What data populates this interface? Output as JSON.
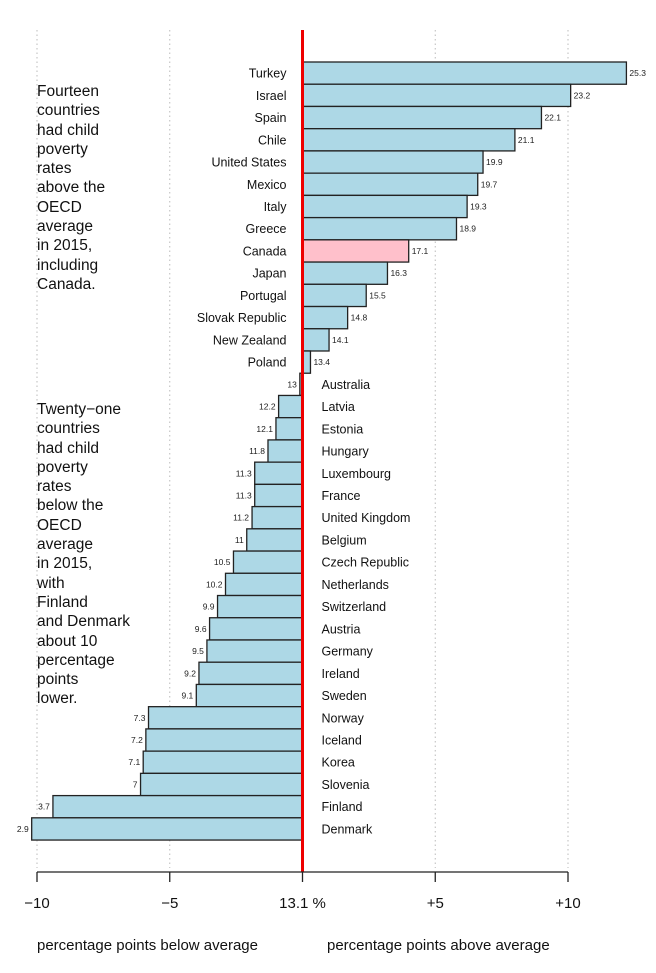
{
  "chart_data": {
    "type": "bar",
    "orientation": "horizontal",
    "title": "",
    "baseline_label": "13.1 %",
    "baseline_value": 13.1,
    "xlabel_left": "percentage points below average",
    "xlabel_right": "percentage points above average",
    "xlim": [
      -10,
      10
    ],
    "xticks": [
      -10,
      -5,
      0,
      5,
      10
    ],
    "xtick_labels": [
      "−10",
      "−5",
      "13.1 %",
      "+5",
      "+10"
    ],
    "grid": "vertical dotted",
    "highlight_color": "#ffc0cb",
    "bar_color": "#add8e6",
    "baseline_color": "#ee0000",
    "categories": [
      "Turkey",
      "Israel",
      "Spain",
      "Chile",
      "United States",
      "Mexico",
      "Italy",
      "Greece",
      "Canada",
      "Japan",
      "Portugal",
      "Slovak Republic",
      "New Zealand",
      "Poland",
      "Australia",
      "Latvia",
      "Estonia",
      "Hungary",
      "Luxembourg",
      "France",
      "United Kingdom",
      "Belgium",
      "Czech Republic",
      "Netherlands",
      "Switzerland",
      "Austria",
      "Germany",
      "Ireland",
      "Sweden",
      "Norway",
      "Iceland",
      "Korea",
      "Slovenia",
      "Finland",
      "Denmark"
    ],
    "values": [
      25.3,
      23.2,
      22.1,
      21.1,
      19.9,
      19.7,
      19.3,
      18.9,
      17.1,
      16.3,
      15.5,
      14.8,
      14.1,
      13.4,
      13,
      12.2,
      12.1,
      11.8,
      11.3,
      11.3,
      11.2,
      11,
      10.5,
      10.2,
      9.9,
      9.6,
      9.5,
      9.2,
      9.1,
      7.3,
      7.2,
      7.1,
      7,
      3.7,
      2.9
    ],
    "value_labels": [
      "25.3",
      "23.2",
      "22.1",
      "21.1",
      "19.9",
      "19.7",
      "19.3",
      "18.9",
      "17.1",
      "16.3",
      "15.5",
      "14.8",
      "14.1",
      "13.4",
      "13",
      "12.2",
      "12.1",
      "11.8",
      "11.3",
      "11.3",
      "11.2",
      "11",
      "10.5",
      "10.2",
      "9.9",
      "9.6",
      "9.5",
      "9.2",
      "9.1",
      "7.3",
      "7.2",
      "7.1",
      "7",
      "3.7",
      "2.9"
    ],
    "highlight": "Canada"
  },
  "annotations": {
    "above": "Fourteen\ncountries\nhad child\npoverty\nrates\nabove the\nOECD\naverage\nin 2015,\nincluding\nCanada.",
    "below": "Twenty−one\ncountries\nhad child\npoverty\nrates\nbelow the\nOECD\naverage\nin 2015,\nwith\nFinland\nand Denmark\nabout 10\npercentage\npoints\nlower."
  }
}
